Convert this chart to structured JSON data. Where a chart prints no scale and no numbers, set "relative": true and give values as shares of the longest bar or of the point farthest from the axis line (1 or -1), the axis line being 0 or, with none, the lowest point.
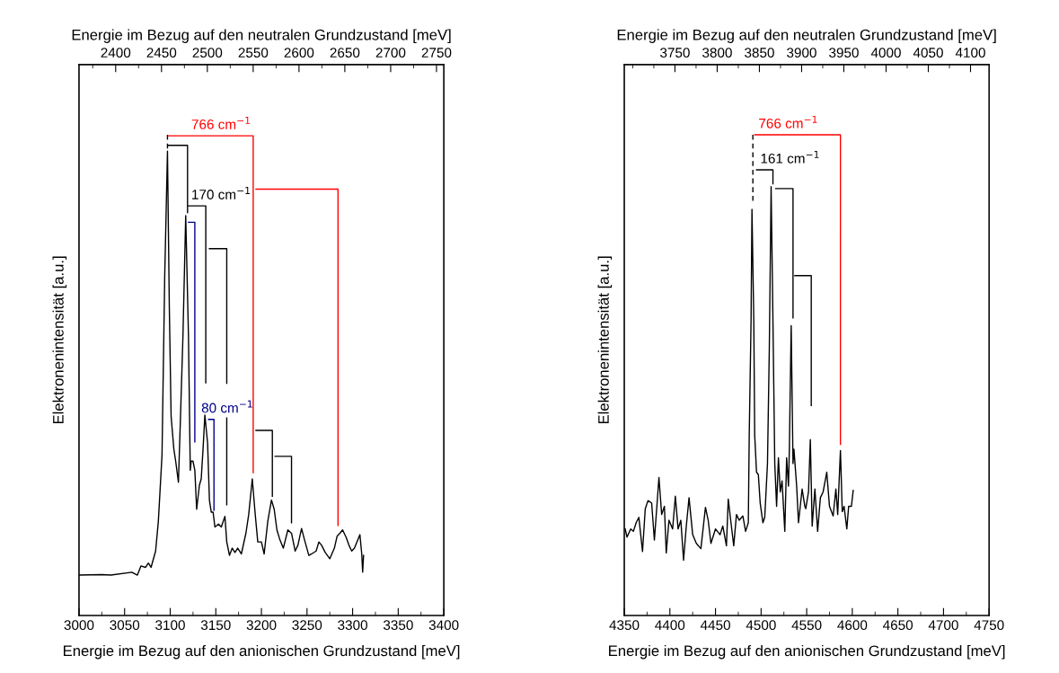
{
  "chart_data": [
    {
      "type": "line",
      "relative": true,
      "xlabel": "Energie im Bezug auf den anionischen Grundzustand [meV]",
      "x2label": "Energie im Bezug auf den neutralen Grundzustand [meV]",
      "ylabel": "Elektronenintensität [a.u.]",
      "xlim": [
        3000,
        3400
      ],
      "xticks": [
        3000,
        3050,
        3100,
        3150,
        3200,
        3250,
        3300,
        3350,
        3400
      ],
      "x2lim": [
        2360,
        2758
      ],
      "x2ticks": [
        2400,
        2450,
        2500,
        2550,
        2600,
        2650,
        2700,
        2750
      ],
      "series": [
        {
          "color": "#000000",
          "x": [
            3000,
            3025,
            3035,
            3058,
            3064,
            3068,
            3073,
            3076,
            3079,
            3084,
            3087,
            3091,
            3094,
            3097,
            3099,
            3101,
            3104,
            3106,
            3109,
            3111,
            3114,
            3117,
            3120,
            3122,
            3123,
            3125,
            3127,
            3129,
            3132,
            3134,
            3136,
            3138,
            3141,
            3143,
            3145,
            3147,
            3149,
            3153,
            3156,
            3160,
            3162,
            3165,
            3168,
            3171,
            3174,
            3178,
            3183,
            3186,
            3190,
            3193,
            3196,
            3200,
            3203,
            3207,
            3211,
            3214,
            3217,
            3220,
            3224,
            3229,
            3233,
            3237,
            3240,
            3244,
            3247,
            3252,
            3255,
            3260,
            3263,
            3266,
            3270,
            3275,
            3280,
            3283,
            3286,
            3289,
            3293,
            3296,
            3299,
            3302,
            3306,
            3308,
            3310,
            3311,
            3312
          ],
          "values": [
            0.084,
            0.085,
            0.084,
            0.09,
            0.084,
            0.103,
            0.1,
            0.109,
            0.1,
            0.134,
            0.196,
            0.333,
            0.707,
            0.966,
            0.645,
            0.414,
            0.346,
            0.321,
            0.277,
            0.396,
            0.583,
            0.832,
            0.583,
            0.302,
            0.321,
            0.321,
            0.302,
            0.221,
            0.271,
            0.284,
            0.346,
            0.417,
            0.358,
            0.24,
            0.215,
            0.215,
            0.184,
            0.19,
            0.184,
            0.206,
            0.153,
            0.125,
            0.14,
            0.131,
            0.14,
            0.128,
            0.171,
            0.209,
            0.284,
            0.215,
            0.153,
            0.153,
            0.128,
            0.196,
            0.24,
            0.221,
            0.178,
            0.159,
            0.14,
            0.178,
            0.171,
            0.134,
            0.146,
            0.181,
            0.159,
            0.125,
            0.128,
            0.134,
            0.153,
            0.146,
            0.131,
            0.118,
            0.14,
            0.165,
            0.171,
            0.178,
            0.162,
            0.146,
            0.134,
            0.14,
            0.159,
            0.168,
            0.128,
            0.09,
            0.125
          ]
        },
        {
          "color": "#000000",
          "line_style": "dashed",
          "x": [
            3097,
            3097
          ],
          "values": [
            1.0,
            0.97
          ]
        },
        {
          "color": "#000000",
          "x": [
            3098,
            3119,
            3119,
            null,
            3120,
            3139,
            3139,
            null,
            3143,
            3162,
            3162,
            null,
            3162,
            3162,
            null,
            3194,
            3212,
            3212,
            null,
            3215,
            3233,
            3233
          ],
          "values": [
            0.978,
            0.978,
            0.838,
            null,
            0.852,
            0.852,
            0.484,
            null,
            0.763,
            0.763,
            0.483,
            null,
            0.411,
            0.23,
            null,
            0.385,
            0.385,
            0.248,
            null,
            0.331,
            0.331,
            0.193
          ]
        },
        {
          "color": "#00008b",
          "x": [
            3120,
            3127,
            3127,
            null,
            3142,
            3148,
            3148
          ],
          "values": [
            0.818,
            0.818,
            0.361,
            null,
            0.408,
            0.408,
            0.219
          ]
        },
        {
          "color": "#ff0000",
          "x": [
            3098,
            3191,
            3191,
            null,
            3194,
            3284,
            3284
          ],
          "values": [
            0.998,
            0.998,
            0.297,
            null,
            0.887,
            0.887,
            0.187
          ]
        }
      ],
      "annotations": [
        {
          "text": "766 cm$^{−1}$",
          "x": 3119,
          "y": 0.998
        },
        {
          "text": "170 cm$^{−1}$",
          "x": 3119,
          "y": 0.852
        },
        {
          "text": "80 cm$^{−1}$",
          "x": 3130,
          "y": 0.408
        }
      ],
      "grid": false,
      "legend": false
    },
    {
      "type": "line",
      "relative": true,
      "xlabel": "Energie im Bezug auf den anionischen Grundzustand [meV]",
      "x2label": "Energie im Bezug auf den neutralen Grundzustand [meV]",
      "ylabel": "Elektronenintensität [a.u.]",
      "xlim": [
        4350,
        4750
      ],
      "xticks": [
        4350,
        4400,
        4450,
        4500,
        4550,
        4600,
        4650,
        4700,
        4750
      ],
      "x2lim": [
        3690,
        4122
      ],
      "x2ticks": [
        3750,
        3800,
        3850,
        3900,
        3950,
        4000,
        4050,
        4100
      ],
      "series": [
        {
          "color": "#000000",
          "x": [
            4351,
            4353,
            4357,
            4360,
            4363,
            4366,
            4370,
            4373,
            4376,
            4380,
            4383,
            4386,
            4388,
            4391,
            4394,
            4396,
            4399,
            4403,
            4406,
            4409,
            4412,
            4415,
            4418,
            4421,
            4425,
            4429,
            4434,
            4439,
            4442,
            4445,
            4450,
            4455,
            4458,
            4462,
            4464,
            4467,
            4470,
            4473,
            4476,
            4480,
            4483,
            4486,
            4487,
            4489,
            4490,
            4492,
            4493,
            4495,
            4497,
            4499,
            4502,
            4504,
            4507,
            4509,
            4511,
            4513,
            4515,
            4517,
            4519,
            4521,
            4523,
            4526,
            4528,
            4530,
            4531,
            4533,
            4535,
            4536,
            4539,
            4541,
            4545,
            4548,
            4549,
            4552,
            4554,
            4556,
            4559,
            4562,
            4565,
            4568,
            4572,
            4575,
            4579,
            4582,
            4584,
            4587,
            4589,
            4591,
            4594,
            4596,
            4599,
            4601
          ],
          "values": [
            0.18,
            0.163,
            0.18,
            0.175,
            0.193,
            0.204,
            0.133,
            0.222,
            0.239,
            0.234,
            0.157,
            0.234,
            0.287,
            0.21,
            0.227,
            0.13,
            0.198,
            0.18,
            0.248,
            0.18,
            0.198,
            0.115,
            0.186,
            0.245,
            0.168,
            0.15,
            0.139,
            0.225,
            0.198,
            0.15,
            0.18,
            0.168,
            0.186,
            0.145,
            0.242,
            0.193,
            0.145,
            0.21,
            0.198,
            0.207,
            0.175,
            0.193,
            0.375,
            0.612,
            0.845,
            0.612,
            0.375,
            0.298,
            0.293,
            0.234,
            0.193,
            0.204,
            0.316,
            0.553,
            0.892,
            0.612,
            0.316,
            0.227,
            0.328,
            0.257,
            0.28,
            0.175,
            0.328,
            0.269,
            0.346,
            0.603,
            0.316,
            0.346,
            0.269,
            0.193,
            0.263,
            0.227,
            0.222,
            0.257,
            0.366,
            0.186,
            0.263,
            0.175,
            0.245,
            0.257,
            0.298,
            0.227,
            0.207,
            0.263,
            0.21,
            0.343,
            0.216,
            0.227,
            0.18,
            0.227,
            0.227,
            0.26
          ]
        },
        {
          "color": "#000000",
          "line_style": "dashed",
          "x": [
            4491,
            4491
          ],
          "values": [
            1.0,
            0.86
          ]
        },
        {
          "color": "#000000",
          "x": [
            4495,
            4513,
            4513,
            null,
            4516,
            4535,
            4535,
            null,
            4537,
            4555,
            4555
          ],
          "values": [
            0.927,
            0.927,
            0.898,
            null,
            0.888,
            0.888,
            0.619,
            null,
            0.707,
            0.707,
            0.437
          ]
        },
        {
          "color": "#ff0000",
          "x": [
            4493,
            4587,
            4587
          ],
          "values": [
            1.0,
            1.0,
            0.356
          ]
        }
      ],
      "annotations": [
        {
          "text": "766 cm$^{−1}$",
          "x": 4493,
          "y": 1.0
        },
        {
          "text": "161 cm$^{−1}$",
          "x": 4495,
          "y": 0.927
        }
      ],
      "grid": false,
      "legend": false
    }
  ]
}
